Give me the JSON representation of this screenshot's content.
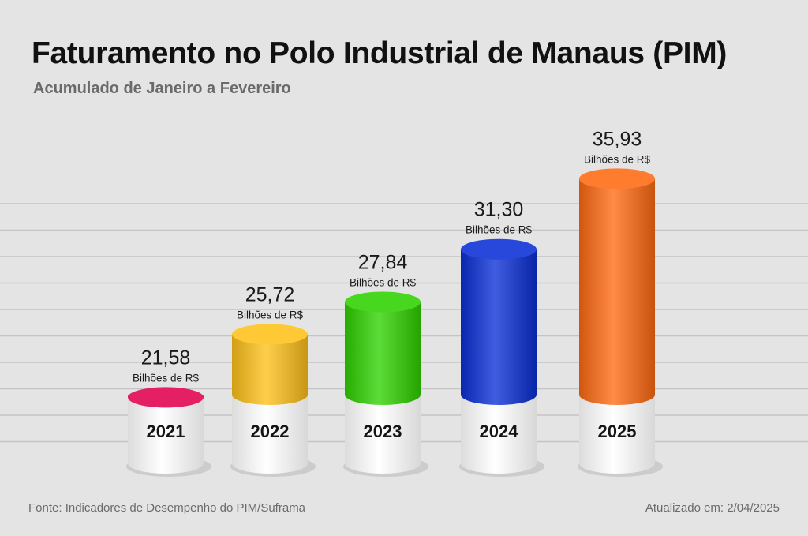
{
  "chart_data": {
    "type": "bar",
    "title": "Faturamento no Polo Industrial de Manaus (PIM)",
    "subtitle": "Acumulado de Janeiro a Fevereiro",
    "categories": [
      "2021",
      "2022",
      "2023",
      "2024",
      "2025"
    ],
    "values": [
      21.58,
      25.72,
      27.84,
      31.3,
      35.93
    ],
    "value_labels": [
      "21,58",
      "25,72",
      "27,84",
      "31,30",
      "35,93"
    ],
    "unit_label": "Bilhões de R$",
    "colors": [
      "#e0004f",
      "#ffc21a",
      "#2fd200",
      "#0a2fd6",
      "#ff6a12"
    ],
    "ylim": [
      0,
      36
    ],
    "grid": true,
    "legend": "none"
  },
  "footer": {
    "source": "Fonte: Indicadores de Desempenho do PIM/Suframa",
    "updated": "Atualizado em: 2/04/2025"
  }
}
